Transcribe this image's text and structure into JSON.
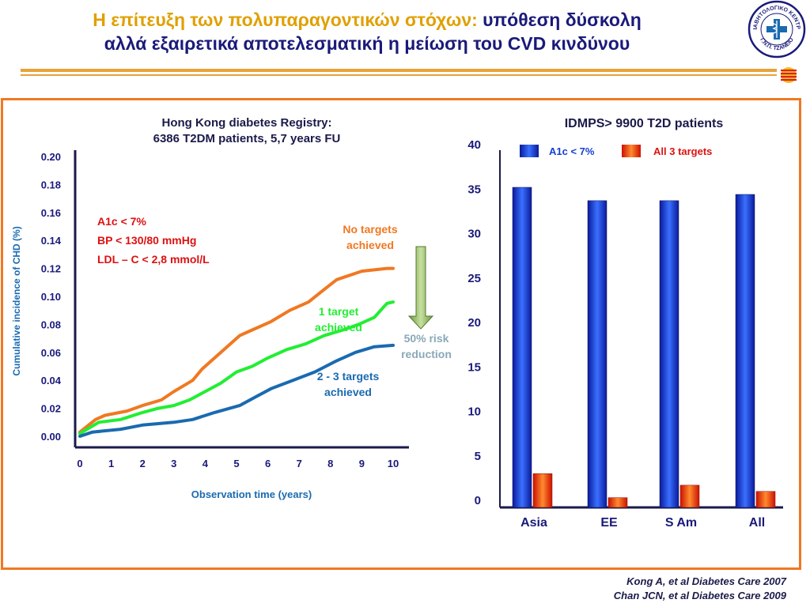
{
  "header": {
    "title_line1_highlight": "Η επίτευξη των πολυπαραγοντικών στόχων:",
    "title_line1_rest": " υπόθεση δύσκολη",
    "title_line2": "αλλά εξαιρετικά αποτελεσματική η  μείωση του CVD κινδύνου",
    "logo_text_top": "ΔΙΑΒΗΤΟΛΟΓΙΚΟ ΚΕΝΤΡΟ",
    "logo_text_bottom": "Γ.Ν.Π. ΤΖΑΝΕΙΟ"
  },
  "colors": {
    "orange": "#f07822",
    "green": "#22ee33",
    "blue": "#1a6ab0",
    "navy": "#1a1a7a",
    "red": "#dd1111"
  },
  "chart_data": [
    {
      "type": "line",
      "title": "Hong Kong diabetes Registry:",
      "subtitle": "6386 T2DM patients, 5,7 years FU",
      "xlabel": "Observation time (years)",
      "ylabel": "Cumulative incidence of CHD (%)",
      "x_ticks": [
        "0",
        "1",
        "2",
        "3",
        "4",
        "5",
        "6",
        "7",
        "8",
        "9",
        "10"
      ],
      "y_ticks": [
        "0.00",
        "0.02",
        "0.04",
        "0.06",
        "0.08",
        "0.10",
        "0.12",
        "0.14",
        "0.16",
        "0.18",
        "0.20"
      ],
      "xlim": [
        0,
        10
      ],
      "ylim": [
        0,
        0.2
      ],
      "targets_box": [
        "A1c < 7%",
        "BP < 130/80 mmHg",
        "LDL – C < 2,8 mmol/L"
      ],
      "arrow_label": [
        "50% risk",
        "reduction"
      ],
      "series": [
        {
          "name": "No targets achieved",
          "label_lines": [
            "No targets",
            "achieved"
          ],
          "color": "#f07822",
          "points": [
            [
              0,
              0.003
            ],
            [
              0.5,
              0.012
            ],
            [
              0.8,
              0.015
            ],
            [
              1.5,
              0.018
            ],
            [
              2,
              0.022
            ],
            [
              2.6,
              0.026
            ],
            [
              3,
              0.032
            ],
            [
              3.3,
              0.036
            ],
            [
              3.6,
              0.04
            ],
            [
              3.9,
              0.048
            ],
            [
              4.2,
              0.054
            ],
            [
              4.6,
              0.062
            ],
            [
              5.1,
              0.072
            ],
            [
              5.5,
              0.076
            ],
            [
              6.1,
              0.082
            ],
            [
              6.7,
              0.09
            ],
            [
              7.3,
              0.096
            ],
            [
              7.8,
              0.105
            ],
            [
              8.2,
              0.112
            ],
            [
              9.0,
              0.118
            ],
            [
              9.8,
              0.12
            ],
            [
              10,
              0.12
            ]
          ]
        },
        {
          "name": "1 target achieved",
          "label_lines": [
            "1 target",
            "achieved"
          ],
          "color": "#22ee33",
          "points": [
            [
              0,
              0.002
            ],
            [
              0.6,
              0.01
            ],
            [
              1.3,
              0.012
            ],
            [
              2,
              0.017
            ],
            [
              2.5,
              0.02
            ],
            [
              3,
              0.022
            ],
            [
              3.5,
              0.026
            ],
            [
              4,
              0.032
            ],
            [
              4.5,
              0.038
            ],
            [
              5,
              0.046
            ],
            [
              5.5,
              0.05
            ],
            [
              6,
              0.056
            ],
            [
              6.6,
              0.062
            ],
            [
              7.2,
              0.066
            ],
            [
              7.8,
              0.072
            ],
            [
              8.4,
              0.076
            ],
            [
              8.9,
              0.08
            ],
            [
              9.4,
              0.085
            ],
            [
              9.8,
              0.095
            ],
            [
              10,
              0.096
            ]
          ]
        },
        {
          "name": "2 - 3  targets achieved",
          "label_lines": [
            "2 - 3  targets",
            "achieved"
          ],
          "color": "#1a6ab0",
          "points": [
            [
              0,
              0.0
            ],
            [
              0.4,
              0.003
            ],
            [
              1.3,
              0.005
            ],
            [
              2,
              0.008
            ],
            [
              3,
              0.01
            ],
            [
              3.6,
              0.012
            ],
            [
              4.3,
              0.017
            ],
            [
              5.1,
              0.022
            ],
            [
              5.6,
              0.028
            ],
            [
              6.1,
              0.034
            ],
            [
              6.8,
              0.04
            ],
            [
              7.5,
              0.046
            ],
            [
              8.2,
              0.054
            ],
            [
              8.8,
              0.06
            ],
            [
              9.4,
              0.064
            ],
            [
              10,
              0.065
            ]
          ]
        }
      ]
    },
    {
      "type": "bar",
      "title": "IDMPS> 9900 T2D patients",
      "categories": [
        "Asia",
        "EE",
        "S  Am",
        "All"
      ],
      "y_ticks": [
        "0",
        "5",
        "10",
        "15",
        "20",
        "25",
        "30",
        "35",
        "40"
      ],
      "ylim": [
        0,
        40
      ],
      "legend_position": "top",
      "series": [
        {
          "name": "A1c < 7%",
          "color": "#1540d0",
          "values": [
            36,
            34.5,
            34.5,
            35.2
          ]
        },
        {
          "name": "All 3 targets",
          "color": "#ee3311",
          "values": [
            3.8,
            1.1,
            2.5,
            1.8
          ]
        }
      ]
    }
  ],
  "references": [
    "Kong A, et al Diabetes Care 2007",
    "Chan JCN, et al Diabetes Care 2009"
  ]
}
